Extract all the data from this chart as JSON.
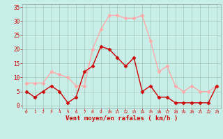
{
  "hours": [
    0,
    1,
    2,
    3,
    4,
    5,
    6,
    7,
    8,
    9,
    10,
    11,
    12,
    13,
    14,
    15,
    16,
    17,
    18,
    19,
    20,
    21,
    22,
    23
  ],
  "wind_avg": [
    5,
    3,
    5,
    7,
    5,
    1,
    3,
    12,
    14,
    21,
    20,
    17,
    14,
    17,
    5,
    7,
    3,
    3,
    1,
    1,
    1,
    1,
    1,
    7
  ],
  "wind_gust": [
    8,
    8,
    8,
    12,
    11,
    10,
    7,
    7,
    20,
    27,
    32,
    32,
    31,
    31,
    32,
    23,
    12,
    14,
    7,
    5,
    7,
    5,
    5,
    7
  ],
  "avg_color": "#cc0000",
  "gust_color": "#ffaaaa",
  "bg_color": "#bbeebb",
  "grid_color": "#aabbaa",
  "xlabel": "Vent moyen/en rafales ( km/h )",
  "xlabel_color": "#cc0000",
  "tick_color": "#cc0000",
  "ylim": [
    -1,
    36
  ],
  "yticks": [
    0,
    5,
    10,
    15,
    20,
    25,
    30,
    35
  ],
  "bg_color2": "#c8eec8"
}
